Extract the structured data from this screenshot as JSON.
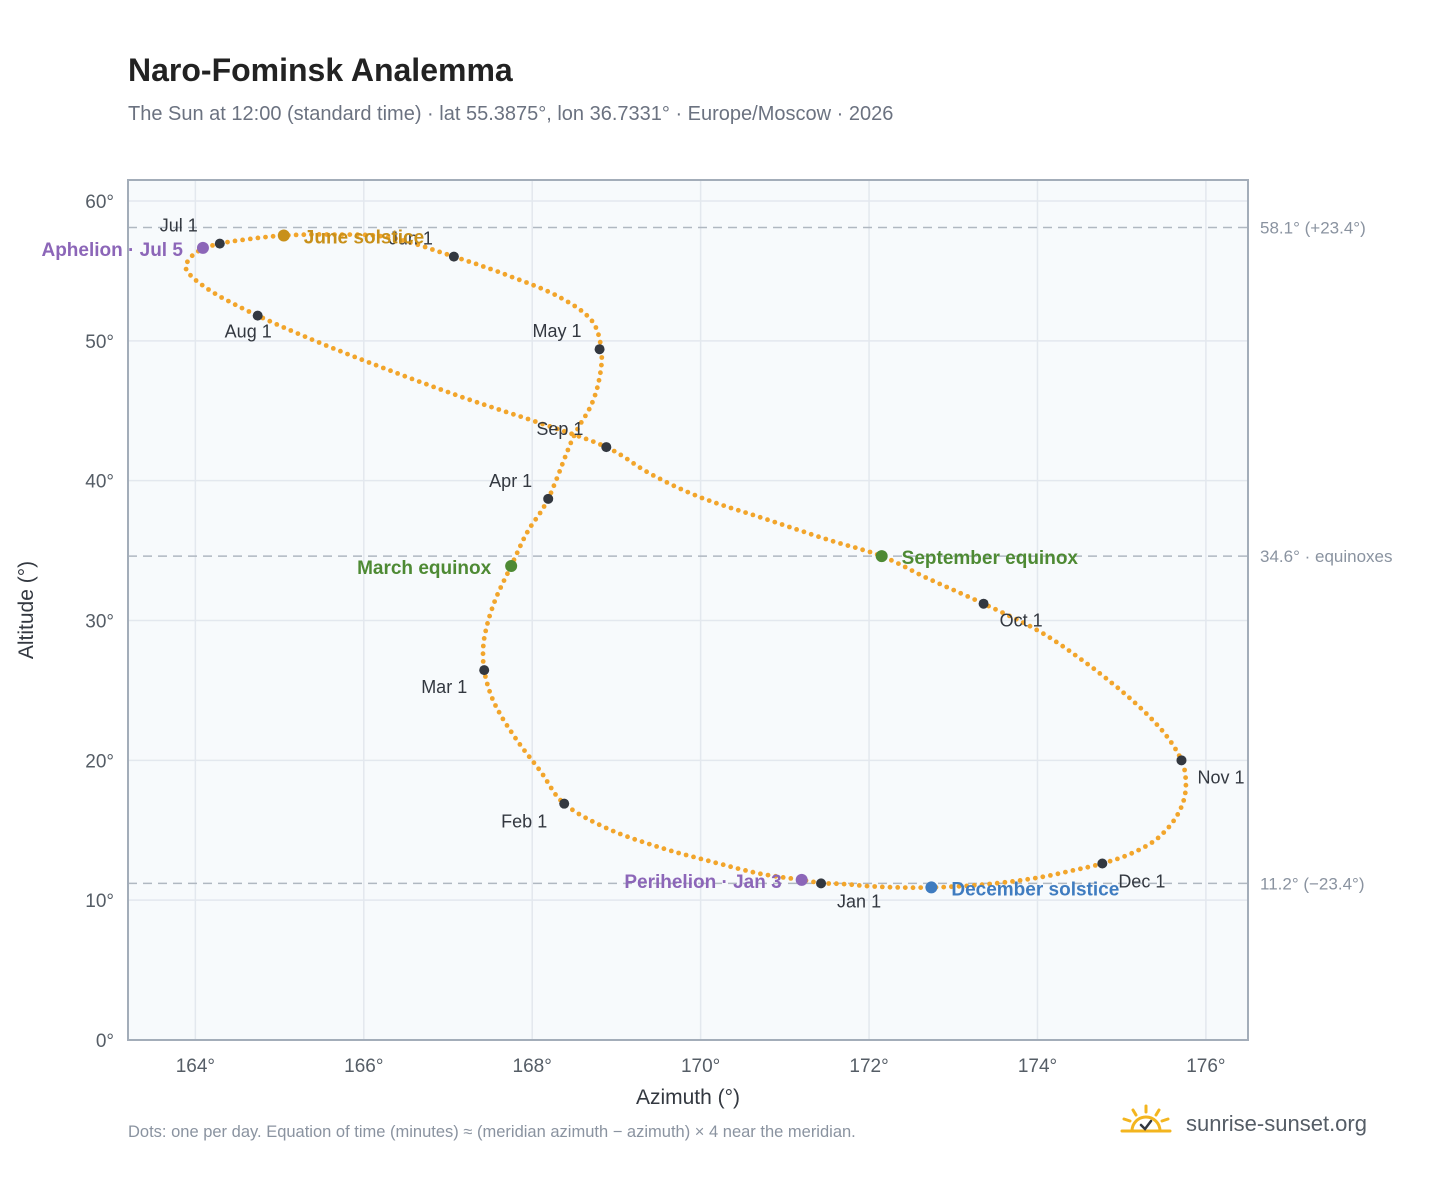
{
  "title": "Naro-Fominsk Analemma",
  "subtitle": "The Sun at 12:00 (standard time) · lat 55.3875°, lon 36.7331° · Europe/Moscow · 2026",
  "footnote": "Dots: one per day. Equation of time (minutes) ≈ (meridian azimuth − azimuth) × 4 near the meridian.",
  "brand": {
    "name": "sunrise-sunset.org",
    "icon": "sun-logo-icon"
  },
  "colors": {
    "background": "#f7fafc",
    "grid": "#e3e8ee",
    "frame": "#a3adb9",
    "curve": "#f2a52b",
    "month_dot": "#333840",
    "june_solstice": "#c8901a",
    "december_solstice": "#3f7cc0",
    "equinox": "#4e8a34",
    "aphelion_perihelion": "#8c66b8",
    "reference_line": "#b0b8c1"
  },
  "chart_data": {
    "type": "scatter",
    "xlabel": "Azimuth (°)",
    "ylabel": "Altitude (°)",
    "xlim": [
      163.2,
      176.5
    ],
    "ylim": [
      0,
      61.5
    ],
    "xticks": [
      164,
      166,
      168,
      170,
      172,
      174,
      176
    ],
    "yticks": [
      0,
      10,
      20,
      30,
      40,
      50,
      60
    ],
    "xtick_labels": [
      "164°",
      "166°",
      "168°",
      "170°",
      "172°",
      "174°",
      "176°"
    ],
    "ytick_labels": [
      "0°",
      "10°",
      "20°",
      "30°",
      "40°",
      "50°",
      "60°"
    ],
    "grid": true,
    "reference_lines": [
      {
        "y": 58.1,
        "label": "58.1° (+23.4°)"
      },
      {
        "y": 34.6,
        "label": "34.6° · equinoxes"
      },
      {
        "y": 11.2,
        "label": "11.2° (−23.4°)"
      }
    ],
    "daily_path": [
      [
        171.43,
        11.2
      ],
      [
        171.6,
        11.18
      ],
      [
        171.77,
        11.12
      ],
      [
        172.0,
        11.0
      ],
      [
        172.4,
        10.9
      ],
      [
        172.74,
        10.91
      ],
      [
        173.1,
        11.0
      ],
      [
        173.5,
        11.2
      ],
      [
        174.0,
        11.6
      ],
      [
        174.4,
        12.1
      ],
      [
        174.77,
        12.62
      ],
      [
        175.1,
        13.3
      ],
      [
        175.4,
        14.3
      ],
      [
        175.62,
        15.7
      ],
      [
        175.74,
        17.2
      ],
      [
        175.76,
        18.7
      ],
      [
        175.71,
        20.0
      ],
      [
        175.55,
        21.6
      ],
      [
        175.3,
        23.3
      ],
      [
        174.95,
        25.2
      ],
      [
        174.5,
        27.3
      ],
      [
        174.0,
        29.3
      ],
      [
        173.36,
        31.2
      ],
      [
        172.7,
        33.0
      ],
      [
        172.15,
        34.6
      ],
      [
        171.5,
        35.8
      ],
      [
        170.8,
        37.2
      ],
      [
        170.0,
        38.8
      ],
      [
        169.4,
        40.5
      ],
      [
        168.88,
        42.4
      ],
      [
        168.1,
        44.1
      ],
      [
        167.2,
        45.9
      ],
      [
        166.3,
        47.9
      ],
      [
        165.5,
        49.8
      ],
      [
        164.74,
        51.8
      ],
      [
        164.2,
        53.5
      ],
      [
        163.9,
        55.0
      ],
      [
        163.95,
        56.0
      ],
      [
        164.1,
        56.6
      ],
      [
        164.29,
        56.95
      ],
      [
        164.6,
        57.25
      ],
      [
        165.05,
        57.53
      ],
      [
        165.6,
        57.6
      ],
      [
        166.3,
        57.4
      ],
      [
        167.07,
        56.02
      ],
      [
        167.7,
        54.7
      ],
      [
        168.3,
        53.2
      ],
      [
        168.7,
        51.5
      ],
      [
        168.82,
        49.4
      ],
      [
        168.8,
        47.4
      ],
      [
        168.7,
        45.4
      ],
      [
        168.48,
        43.0
      ],
      [
        168.19,
        38.7
      ],
      [
        167.94,
        36.3
      ],
      [
        167.75,
        33.9
      ],
      [
        167.55,
        31.3
      ],
      [
        167.43,
        28.7
      ],
      [
        167.43,
        26.45
      ],
      [
        167.55,
        24.1
      ],
      [
        167.8,
        21.6
      ],
      [
        168.1,
        19.2
      ],
      [
        168.38,
        16.9
      ],
      [
        168.9,
        15.1
      ],
      [
        169.5,
        13.8
      ],
      [
        170.1,
        12.8
      ],
      [
        170.7,
        11.9
      ],
      [
        171.2,
        11.45
      ],
      [
        171.43,
        11.2
      ]
    ],
    "month_markers": [
      {
        "label": "Jan 1",
        "x": 171.43,
        "y": 11.2
      },
      {
        "label": "Feb 1",
        "x": 168.38,
        "y": 16.9
      },
      {
        "label": "Mar 1",
        "x": 167.43,
        "y": 26.45
      },
      {
        "label": "Apr 1",
        "x": 168.19,
        "y": 38.7
      },
      {
        "label": "May 1",
        "x": 168.8,
        "y": 49.4
      },
      {
        "label": "Jun 1",
        "x": 167.07,
        "y": 56.02
      },
      {
        "label": "Jul 1",
        "x": 164.29,
        "y": 56.95
      },
      {
        "label": "Aug 1",
        "x": 164.74,
        "y": 51.8
      },
      {
        "label": "Sep 1",
        "x": 168.88,
        "y": 42.4
      },
      {
        "label": "Oct 1",
        "x": 173.36,
        "y": 31.2
      },
      {
        "label": "Nov 1",
        "x": 175.71,
        "y": 20.0
      },
      {
        "label": "Dec 1",
        "x": 174.77,
        "y": 12.62
      }
    ],
    "events": [
      {
        "label": "June solstice",
        "x": 165.05,
        "y": 57.53,
        "kind": "june_solstice"
      },
      {
        "label": "December solstice",
        "x": 172.74,
        "y": 10.91,
        "kind": "december_solstice"
      },
      {
        "label": "March equinox",
        "x": 167.75,
        "y": 33.9,
        "kind": "equinox"
      },
      {
        "label": "September equinox",
        "x": 172.15,
        "y": 34.6,
        "kind": "equinox"
      },
      {
        "label": "Aphelion · Jul 5",
        "x": 164.09,
        "y": 56.65,
        "kind": "aphelion_perihelion"
      },
      {
        "label": "Perihelion · Jan 3",
        "x": 171.2,
        "y": 11.45,
        "kind": "aphelion_perihelion"
      }
    ]
  }
}
